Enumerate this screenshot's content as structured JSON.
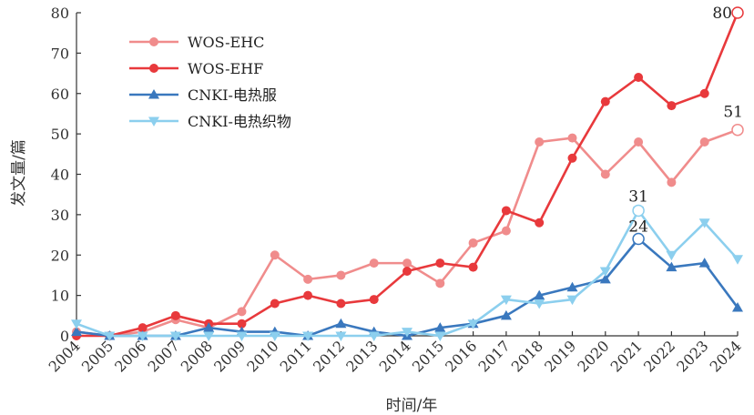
{
  "chart_data": {
    "type": "line",
    "title": "",
    "xlabel": "时间/年",
    "ylabel": "发文量/篇",
    "ylim": [
      0,
      80
    ],
    "yticks": [
      0,
      10,
      20,
      30,
      40,
      50,
      60,
      70,
      80
    ],
    "grid": false,
    "legend_position": "top-left",
    "categories": [
      "2004",
      "2005",
      "2006",
      "2007",
      "2008",
      "2009",
      "2010",
      "2011",
      "2012",
      "2013",
      "2014",
      "2015",
      "2016",
      "2017",
      "2018",
      "2019",
      "2020",
      "2021",
      "2022",
      "2023",
      "2024"
    ],
    "series": [
      {
        "name": "WOS-EHC",
        "color": "#f08c8c",
        "marker": "circle",
        "values": [
          1,
          0,
          1,
          4,
          2,
          6,
          20,
          14,
          15,
          18,
          18,
          13,
          23,
          26,
          48,
          49,
          40,
          48,
          38,
          48,
          51
        ]
      },
      {
        "name": "WOS-EHF",
        "color": "#e8393c",
        "marker": "circle",
        "values": [
          0,
          0,
          2,
          5,
          3,
          3,
          8,
          10,
          8,
          9,
          16,
          18,
          17,
          31,
          28,
          44,
          58,
          64,
          57,
          60,
          80
        ]
      },
      {
        "name": "CNKI-电热服",
        "color": "#3a78be",
        "marker": "triangle-up",
        "values": [
          1,
          0,
          0,
          0,
          2,
          1,
          1,
          0,
          3,
          1,
          0,
          2,
          3,
          5,
          10,
          12,
          14,
          24,
          17,
          18,
          7
        ]
      },
      {
        "name": "CNKI-电热织物",
        "color": "#8ccfee",
        "marker": "triangle-down",
        "values": [
          3,
          0,
          0,
          0,
          0,
          0,
          0,
          0,
          0,
          0,
          1,
          0,
          3,
          9,
          8,
          9,
          16,
          31,
          20,
          28,
          19
        ]
      }
    ],
    "annotations": [
      {
        "series": 1,
        "index": 20,
        "text": "80"
      },
      {
        "series": 0,
        "index": 20,
        "text": "51"
      },
      {
        "series": 3,
        "index": 17,
        "text": "31"
      },
      {
        "series": 2,
        "index": 17,
        "text": "24"
      }
    ]
  }
}
